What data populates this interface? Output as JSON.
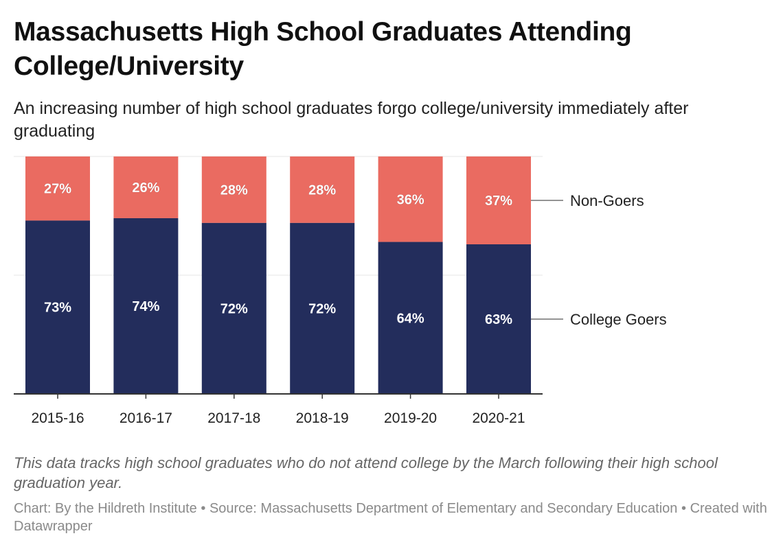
{
  "title": "Massachusetts High School Graduates Attending College/University",
  "subtitle": "An increasing number of high school graduates forgo college/university immediately after graduating",
  "note": "This data tracks high school graduates who do not attend college by the March following their high school graduation year.",
  "credit": {
    "chart": "Chart: By the Hildreth Institute",
    "source": "Source: Massachusetts Department of Elementary and Secondary Education",
    "created": "Created with Datawrapper",
    "separator": "•"
  },
  "colors": {
    "college_goers": "#232d5c",
    "non_goers": "#ea6b61",
    "grid": "#e6e6e6",
    "axis": "#333333"
  },
  "chart_data": {
    "type": "bar",
    "stacked": true,
    "orientation": "vertical",
    "title": "Massachusetts High School Graduates Attending College/University",
    "categories": [
      "2015-16",
      "2016-17",
      "2017-18",
      "2018-19",
      "2019-20",
      "2020-21"
    ],
    "series": [
      {
        "name": "College Goers",
        "values": [
          73,
          74,
          72,
          72,
          64,
          63
        ],
        "labels": [
          "73%",
          "74%",
          "72%",
          "72%",
          "64%",
          "63%"
        ],
        "color": "#232d5c"
      },
      {
        "name": "Non-Goers",
        "values": [
          27,
          26,
          28,
          28,
          36,
          37
        ],
        "labels": [
          "27%",
          "26%",
          "28%",
          "28%",
          "36%",
          "37%"
        ],
        "color": "#ea6b61"
      }
    ],
    "ylim": [
      0,
      100
    ],
    "grid": true,
    "xlabel": "",
    "ylabel": "",
    "legend": "right, inline labels"
  }
}
